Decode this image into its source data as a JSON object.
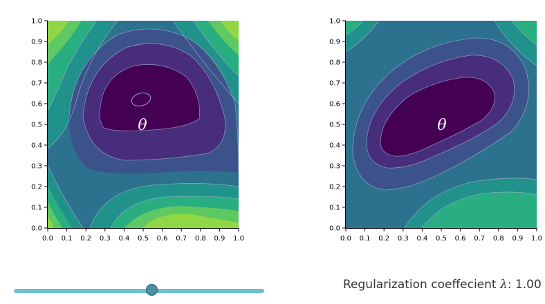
{
  "plots": [
    {
      "theta_label": "θ",
      "colors": {
        "c0": "#440154",
        "c1": "#472d7b",
        "c2": "#3b528b",
        "c3": "#2c728e",
        "c4": "#21918c",
        "c5": "#28ae80",
        "c6": "#5ec962",
        "c7": "#8fd744"
      }
    },
    {
      "theta_label": "θ",
      "colors": {
        "c0": "#440154",
        "c1": "#472d7b",
        "c2": "#3b528b",
        "c3": "#2c728e",
        "c4": "#21918c",
        "c5": "#28ae80",
        "c6": "#5ec962",
        "c7": "#8fd744"
      }
    }
  ],
  "axis": {
    "x_ticks": [
      "0.0",
      "0.1",
      "0.2",
      "0.3",
      "0.4",
      "0.5",
      "0.6",
      "0.7",
      "0.8",
      "0.9",
      "1.0"
    ],
    "y_ticks": [
      "0.0",
      "0.1",
      "0.2",
      "0.3",
      "0.4",
      "0.5",
      "0.6",
      "0.7",
      "0.8",
      "0.9",
      "1.0"
    ]
  },
  "slider": {
    "value_fraction": 0.55,
    "track_color": "#6cc0cc",
    "thumb_color": "#4a8fa3"
  },
  "regularization": {
    "label_prefix": "Regularization coeffecient ",
    "symbol": "λ",
    "value_text": ": 1.00"
  }
}
